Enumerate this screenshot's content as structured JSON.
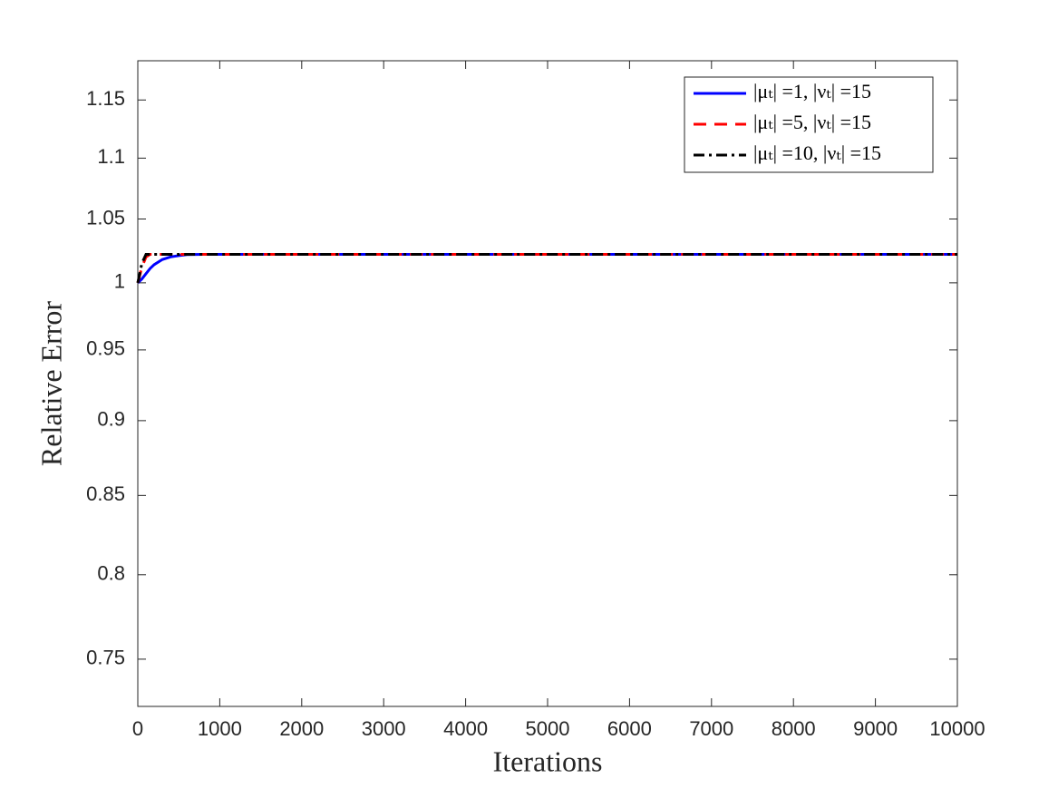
{
  "chart_data": {
    "type": "line",
    "x_label": "Iterations",
    "y_label": "Relative Error",
    "x": [
      0,
      50,
      100,
      150,
      200,
      300,
      400,
      500,
      600,
      800,
      1000,
      2000,
      3000,
      4000,
      5000,
      6000,
      7000,
      8000,
      9000,
      10000
    ],
    "series": [
      {
        "name": "|μₜ| =1, |νₜ| =15",
        "color": "#0000ff",
        "style": "solid",
        "values": [
          1.0,
          1.003,
          1.007,
          1.011,
          1.014,
          1.018,
          1.02,
          1.021,
          1.0218,
          1.022,
          1.022,
          1.022,
          1.022,
          1.022,
          1.022,
          1.022,
          1.022,
          1.022,
          1.022,
          1.022
        ]
      },
      {
        "name": "|μₜ| =5, |νₜ| =15",
        "color": "#ff0000",
        "style": "dashed",
        "values": [
          1.0,
          1.012,
          1.02,
          1.022,
          1.022,
          1.022,
          1.022,
          1.022,
          1.022,
          1.022,
          1.022,
          1.022,
          1.022,
          1.022,
          1.022,
          1.022,
          1.022,
          1.022,
          1.022,
          1.022
        ]
      },
      {
        "name": "|μₜ| =10, |νₜ| =15",
        "color": "#000000",
        "style": "dashdot",
        "values": [
          1.0,
          1.015,
          1.022,
          1.022,
          1.022,
          1.022,
          1.022,
          1.022,
          1.022,
          1.022,
          1.022,
          1.022,
          1.022,
          1.022,
          1.022,
          1.022,
          1.022,
          1.022,
          1.022,
          1.022
        ]
      }
    ],
    "xlim": [
      0,
      10000
    ],
    "xticks": [
      0,
      1000,
      2000,
      3000,
      4000,
      5000,
      6000,
      7000,
      8000,
      9000,
      10000
    ],
    "ylim": [
      0.7234,
      1.185
    ],
    "yticks": [
      0.75,
      0.8,
      0.85,
      0.9,
      0.95,
      1,
      1.05,
      1.1,
      1.15
    ],
    "y_scale": "log",
    "grid": false,
    "legend": "upper right"
  }
}
